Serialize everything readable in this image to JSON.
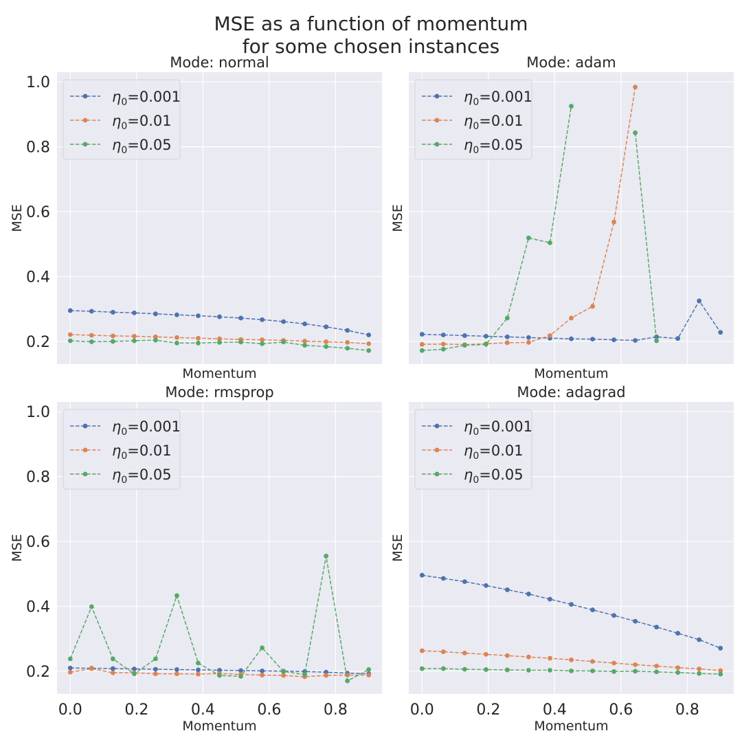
{
  "figure": {
    "title_line1": "MSE as a function of momentum",
    "title_line2": "for some chosen instances"
  },
  "colors": {
    "background": "#eaeaf2",
    "grid": "#ffffff",
    "series": [
      "#4c72b0",
      "#dd8452",
      "#55a868"
    ]
  },
  "chart_data": [
    {
      "type": "line",
      "title": "Mode: normal",
      "xlabel": "Momentum",
      "ylabel": "MSE",
      "xlim": [
        -0.04,
        0.94
      ],
      "ylim": [
        0.13,
        1.03
      ],
      "xticks": [
        "0.0",
        "0.2",
        "0.4",
        "0.6",
        "0.8"
      ],
      "yticks": [
        "0.2",
        "0.4",
        "0.6",
        "0.8",
        "1.0"
      ],
      "show_xticklabels": false,
      "show_yticklabels": true,
      "legend_position": "top-left",
      "x": [
        0.0,
        0.0643,
        0.1286,
        0.1929,
        0.2571,
        0.3214,
        0.3857,
        0.45,
        0.5143,
        0.5786,
        0.6429,
        0.7071,
        0.7714,
        0.8357,
        0.9
      ],
      "series": [
        {
          "name": "η0=0.001",
          "legend_base": "η",
          "legend_sub": "0",
          "legend_rest": "=0.001",
          "values": [
            0.295,
            0.293,
            0.29,
            0.288,
            0.285,
            0.282,
            0.279,
            0.276,
            0.272,
            0.267,
            0.261,
            0.254,
            0.245,
            0.234,
            0.22
          ]
        },
        {
          "name": "η0=0.01",
          "legend_base": "η",
          "legend_sub": "0",
          "legend_rest": "=0.01",
          "values": [
            0.221,
            0.219,
            0.217,
            0.216,
            0.214,
            0.212,
            0.21,
            0.208,
            0.206,
            0.205,
            0.203,
            0.201,
            0.199,
            0.197,
            0.193
          ]
        },
        {
          "name": "η0=0.05",
          "legend_base": "η",
          "legend_sub": "0",
          "legend_rest": "=0.05",
          "values": [
            0.202,
            0.199,
            0.2,
            0.202,
            0.204,
            0.195,
            0.195,
            0.197,
            0.198,
            0.193,
            0.198,
            0.188,
            0.184,
            0.179,
            0.172
          ]
        }
      ]
    },
    {
      "type": "line",
      "title": "Mode: adam",
      "xlabel": "Momentum",
      "ylabel": "MSE",
      "xlim": [
        -0.04,
        0.94
      ],
      "ylim": [
        0.13,
        1.03
      ],
      "xticks": [
        "0.0",
        "0.2",
        "0.4",
        "0.6",
        "0.8"
      ],
      "yticks": [
        "0.2",
        "0.4",
        "0.6",
        "0.8",
        "1.0"
      ],
      "show_xticklabels": false,
      "show_yticklabels": false,
      "legend_position": "top-left",
      "x": [
        0.0,
        0.0643,
        0.1286,
        0.1929,
        0.2571,
        0.3214,
        0.3857,
        0.45,
        0.5143,
        0.5786,
        0.6429,
        0.7071,
        0.7714,
        0.8357,
        0.9
      ],
      "series": [
        {
          "name": "η0=0.001",
          "legend_base": "η",
          "legend_sub": "0",
          "legend_rest": "=0.001",
          "values": [
            0.222,
            0.22,
            0.218,
            0.216,
            0.214,
            0.212,
            0.21,
            0.208,
            0.207,
            0.205,
            0.203,
            0.214,
            0.209,
            0.325,
            0.228
          ]
        },
        {
          "name": "η0=0.01",
          "legend_base": "η",
          "legend_sub": "0",
          "legend_rest": "=0.01",
          "values": [
            0.191,
            0.192,
            0.19,
            0.193,
            0.196,
            0.197,
            0.218,
            0.272,
            0.308,
            0.568,
            0.984,
            null,
            null,
            null,
            null
          ]
        },
        {
          "name": "η0=0.05",
          "legend_base": "η",
          "legend_sub": "0",
          "legend_rest": "=0.05",
          "values": [
            0.172,
            0.176,
            0.188,
            0.191,
            0.272,
            0.519,
            0.504,
            0.925,
            null,
            null,
            0.843,
            0.202,
            null,
            null,
            null
          ]
        }
      ]
    },
    {
      "type": "line",
      "title": "Mode: rmsprop",
      "xlabel": "Momentum",
      "ylabel": "MSE",
      "xlim": [
        -0.04,
        0.94
      ],
      "ylim": [
        0.13,
        1.03
      ],
      "xticks": [
        "0.0",
        "0.2",
        "0.4",
        "0.6",
        "0.8"
      ],
      "yticks": [
        "0.2",
        "0.4",
        "0.6",
        "0.8",
        "1.0"
      ],
      "show_xticklabels": true,
      "show_yticklabels": true,
      "legend_position": "top-left",
      "x": [
        0.0,
        0.0643,
        0.1286,
        0.1929,
        0.2571,
        0.3214,
        0.3857,
        0.45,
        0.5143,
        0.5786,
        0.6429,
        0.7071,
        0.7714,
        0.8357,
        0.9
      ],
      "series": [
        {
          "name": "η0=0.001",
          "legend_base": "η",
          "legend_sub": "0",
          "legend_rest": "=0.001",
          "values": [
            0.21,
            0.209,
            0.208,
            0.207,
            0.206,
            0.205,
            0.204,
            0.203,
            0.202,
            0.201,
            0.2,
            0.199,
            0.197,
            0.194,
            0.192
          ]
        },
        {
          "name": "η0=0.01",
          "legend_base": "η",
          "legend_sub": "0",
          "legend_rest": "=0.01",
          "values": [
            0.197,
            0.208,
            0.195,
            0.195,
            0.192,
            0.192,
            0.191,
            0.193,
            0.19,
            0.188,
            0.187,
            0.183,
            0.187,
            0.188,
            0.188
          ]
        },
        {
          "name": "η0=0.05",
          "legend_base": "η",
          "legend_sub": "0",
          "legend_rest": "=0.05",
          "values": [
            0.238,
            0.399,
            0.238,
            0.192,
            0.238,
            0.433,
            0.225,
            0.187,
            0.184,
            0.272,
            0.199,
            0.19,
            0.555,
            0.17,
            0.205
          ]
        }
      ]
    },
    {
      "type": "line",
      "title": "Mode: adagrad",
      "xlabel": "Momentum",
      "ylabel": "MSE",
      "xlim": [
        -0.04,
        0.94
      ],
      "ylim": [
        0.13,
        1.03
      ],
      "xticks": [
        "0.0",
        "0.2",
        "0.4",
        "0.6",
        "0.8"
      ],
      "yticks": [
        "0.2",
        "0.4",
        "0.6",
        "0.8",
        "1.0"
      ],
      "show_xticklabels": true,
      "show_yticklabels": false,
      "legend_position": "top-left",
      "x": [
        0.0,
        0.0643,
        0.1286,
        0.1929,
        0.2571,
        0.3214,
        0.3857,
        0.45,
        0.5143,
        0.5786,
        0.6429,
        0.7071,
        0.7714,
        0.8357,
        0.9
      ],
      "series": [
        {
          "name": "η0=0.001",
          "legend_base": "η",
          "legend_sub": "0",
          "legend_rest": "=0.001",
          "values": [
            0.496,
            0.486,
            0.476,
            0.464,
            0.451,
            0.438,
            0.422,
            0.406,
            0.389,
            0.372,
            0.354,
            0.336,
            0.317,
            0.297,
            0.271
          ]
        },
        {
          "name": "η0=0.01",
          "legend_base": "η",
          "legend_sub": "0",
          "legend_rest": "=0.01",
          "values": [
            0.263,
            0.26,
            0.256,
            0.252,
            0.248,
            0.244,
            0.24,
            0.235,
            0.23,
            0.225,
            0.22,
            0.216,
            0.211,
            0.207,
            0.202
          ]
        },
        {
          "name": "η0=0.05",
          "legend_base": "η",
          "legend_sub": "0",
          "legend_rest": "=0.05",
          "values": [
            0.208,
            0.208,
            0.206,
            0.205,
            0.204,
            0.203,
            0.203,
            0.201,
            0.201,
            0.199,
            0.2,
            0.198,
            0.196,
            0.193,
            0.191
          ]
        }
      ]
    }
  ]
}
